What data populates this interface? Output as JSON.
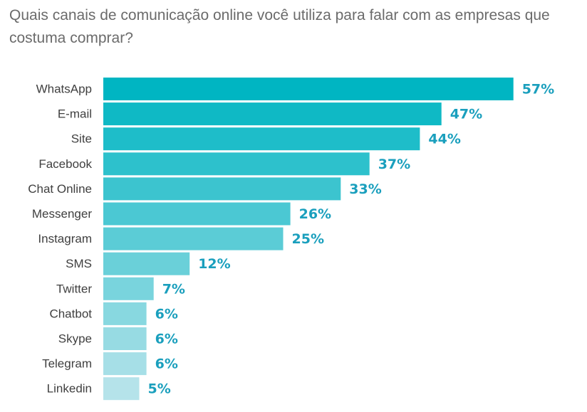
{
  "chart_data": {
    "type": "bar",
    "orientation": "horizontal",
    "title": "Quais canais de comunicação online você utiliza para falar com as empresas que costuma comprar?",
    "categories": [
      "WhatsApp",
      "E-mail",
      "Site",
      "Facebook",
      "Chat Online",
      "Messenger",
      "Instagram",
      "SMS",
      "Twitter",
      "Chatbot",
      "Skype",
      "Telegram",
      "Linkedin"
    ],
    "values": [
      57,
      47,
      44,
      37,
      33,
      26,
      25,
      12,
      7,
      6,
      6,
      6,
      5
    ],
    "value_labels": [
      "57%",
      "47%",
      "44%",
      "37%",
      "33%",
      "26%",
      "25%",
      "12%",
      "7%",
      "6%",
      "6%",
      "6%",
      "5%"
    ],
    "unit": "%",
    "grid": false,
    "legend": "none",
    "colors": {
      "bar_dark": "#00b5c2",
      "bar_light": "#b5e3ea",
      "value_text": "#1a9fbd",
      "category_text": "#3f3f3f",
      "title_text": "#6b6b6b"
    }
  }
}
